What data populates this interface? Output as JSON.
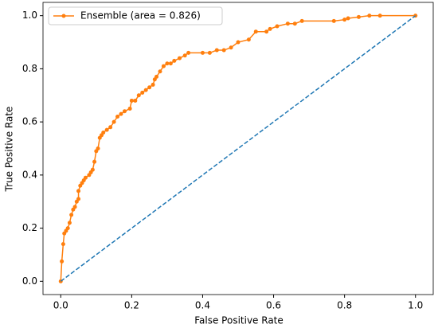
{
  "chart_data": {
    "type": "line",
    "xlabel": "False Positive Rate",
    "ylabel": "True Positive Rate",
    "xlim": [
      -0.05,
      1.05
    ],
    "ylim": [
      -0.05,
      1.05
    ],
    "xticks": [
      {
        "value": 0,
        "label": "0.0"
      },
      0.2,
      0.4,
      0.6,
      0.8,
      {
        "value": 1,
        "label": "1.0"
      }
    ],
    "yticks": [
      {
        "value": 0,
        "label": "0.0"
      },
      0.2,
      0.4,
      0.6,
      0.8,
      {
        "value": 1,
        "label": "1.0"
      }
    ],
    "grid": false,
    "legend": "upper left",
    "series": [
      {
        "name": "Ensemble (area = 0.826)",
        "color": "#ff7f0e",
        "marker": true,
        "x": [
          0,
          0.003,
          0.007,
          0.01,
          0.015,
          0.02,
          0.025,
          0.03,
          0.035,
          0.04,
          0.045,
          0.05,
          0.05,
          0.055,
          0.06,
          0.065,
          0.07,
          0.08,
          0.085,
          0.09,
          0.095,
          0.1,
          0.105,
          0.11,
          0.115,
          0.12,
          0.13,
          0.14,
          0.15,
          0.16,
          0.17,
          0.18,
          0.195,
          0.2,
          0.21,
          0.22,
          0.23,
          0.24,
          0.25,
          0.26,
          0.265,
          0.27,
          0.28,
          0.29,
          0.3,
          0.31,
          0.32,
          0.335,
          0.35,
          0.36,
          0.4,
          0.42,
          0.44,
          0.46,
          0.48,
          0.5,
          0.53,
          0.55,
          0.58,
          0.59,
          0.61,
          0.64,
          0.66,
          0.68,
          0.77,
          0.8,
          0.81,
          0.84,
          0.87,
          0.9,
          1.0
        ],
        "values": [
          0,
          0.075,
          0.14,
          0.18,
          0.19,
          0.2,
          0.22,
          0.25,
          0.27,
          0.28,
          0.3,
          0.31,
          0.34,
          0.36,
          0.37,
          0.38,
          0.39,
          0.4,
          0.41,
          0.42,
          0.45,
          0.49,
          0.5,
          0.54,
          0.55,
          0.56,
          0.57,
          0.58,
          0.6,
          0.62,
          0.63,
          0.64,
          0.65,
          0.68,
          0.68,
          0.7,
          0.71,
          0.72,
          0.73,
          0.74,
          0.76,
          0.77,
          0.79,
          0.81,
          0.82,
          0.82,
          0.83,
          0.84,
          0.85,
          0.86,
          0.86,
          0.86,
          0.87,
          0.87,
          0.88,
          0.9,
          0.91,
          0.94,
          0.94,
          0.95,
          0.96,
          0.97,
          0.97,
          0.98,
          0.98,
          0.985,
          0.99,
          0.995,
          1.0,
          1.0,
          1.0
        ]
      },
      {
        "color": "#1f77b4",
        "dashed": true,
        "x": [
          0,
          1
        ],
        "values": [
          0,
          1
        ]
      }
    ]
  }
}
